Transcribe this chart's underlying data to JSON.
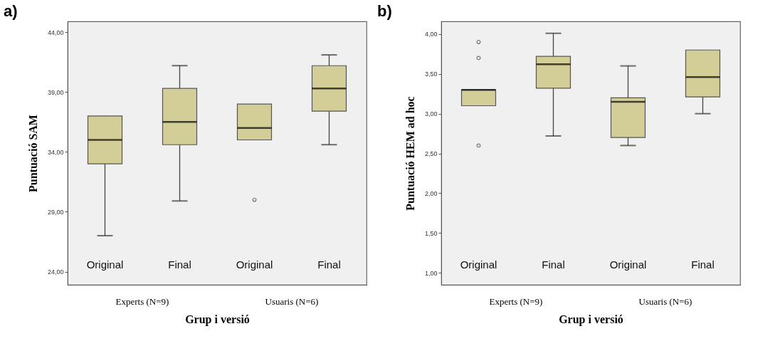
{
  "chart_data": [
    {
      "type": "box",
      "title": "a)",
      "xlabel": "Grup i versió",
      "ylabel": "Puntuació SAM",
      "categories": [
        "Original",
        "Final",
        "Original",
        "Final"
      ],
      "annotations": [
        "Experts (N=9)",
        "Usuaris (N=6)"
      ],
      "ylim": [
        22.9,
        44.9
      ],
      "yticks": [
        {
          "value": 24,
          "label": "24,00"
        },
        {
          "value": 29,
          "label": "29,00"
        },
        {
          "value": 34,
          "label": "34,00"
        },
        {
          "value": 39,
          "label": "39,00"
        },
        {
          "value": 44,
          "label": "44,00"
        }
      ],
      "grid": false,
      "color": "#d3ce97",
      "boxes": [
        {
          "low": 27,
          "q1": 33,
          "median": 35,
          "q3": 37,
          "high": 37
        },
        {
          "low": 29.9,
          "q1": 34.6,
          "median": 36.5,
          "q3": 39.3,
          "high": 41.2
        },
        {
          "low": 35,
          "q1": 35,
          "median": 36,
          "q3": 38,
          "high": 38,
          "outliers": [
            30
          ]
        },
        {
          "low": 34.6,
          "q1": 37.4,
          "median": 39.3,
          "q3": 41.2,
          "high": 42.1
        }
      ]
    },
    {
      "type": "box",
      "title": "b)",
      "xlabel": "Grup i versió",
      "ylabel": "Puntuació HEM ad hoc",
      "categories": [
        "Original",
        "Final",
        "Original",
        "Final"
      ],
      "annotations": [
        "Experts (N=9)",
        "Usuaris (N=6)"
      ],
      "ylim": [
        0.85,
        4.16
      ],
      "yticks": [
        {
          "value": 1,
          "label": "1,00"
        },
        {
          "value": 1.5,
          "label": "1,50"
        },
        {
          "value": 2,
          "label": "2,00"
        },
        {
          "value": 2.5,
          "label": "2,50"
        },
        {
          "value": 3,
          "label": "3,00"
        },
        {
          "value": 3.5,
          "label": "3,50"
        },
        {
          "value": 4,
          "label": "4,00"
        }
      ],
      "grid": false,
      "color": "#d3ce97",
      "boxes": [
        {
          "low": 3.1,
          "q1": 3.1,
          "median": 3.3,
          "q3": 3.3,
          "high": 3.3,
          "outliers": [
            2.6,
            3.7,
            3.9
          ]
        },
        {
          "low": 2.72,
          "q1": 3.32,
          "median": 3.62,
          "q3": 3.72,
          "high": 4.01
        },
        {
          "low": 2.6,
          "q1": 2.7,
          "median": 3.15,
          "q3": 3.2,
          "high": 3.6
        },
        {
          "low": 3.0,
          "q1": 3.21,
          "median": 3.46,
          "q3": 3.8,
          "high": 3.8
        }
      ]
    }
  ]
}
